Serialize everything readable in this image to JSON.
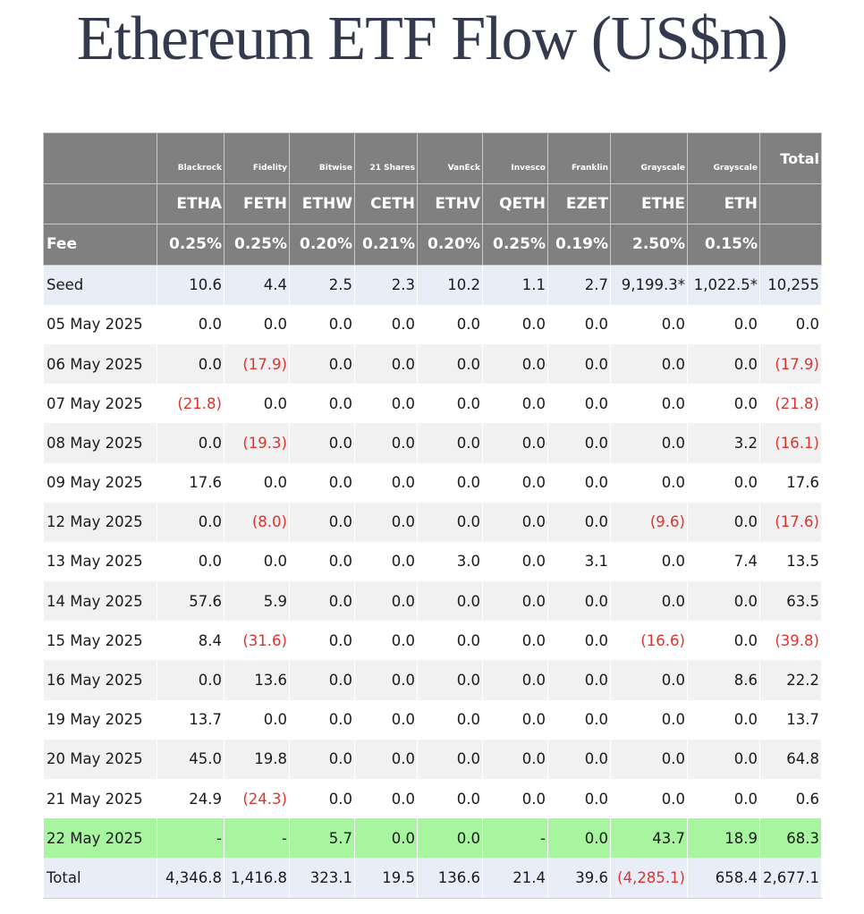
{
  "title": "Ethereum ETF Flow (US$m)",
  "header": {
    "issuers": [
      "Blackrock",
      "Fidelity",
      "Bitwise",
      "21 Shares",
      "VanEck",
      "Invesco",
      "Franklin",
      "Grayscale",
      "Grayscale"
    ],
    "total_label": "Total",
    "tickers": [
      "ETHA",
      "FETH",
      "ETHW",
      "CETH",
      "ETHV",
      "QETH",
      "EZET",
      "ETHE",
      "ETH"
    ],
    "fee_label": "Fee",
    "fees": [
      "0.25%",
      "0.25%",
      "0.20%",
      "0.21%",
      "0.20%",
      "0.25%",
      "0.19%",
      "2.50%",
      "0.15%"
    ]
  },
  "rows": [
    {
      "label": "Seed",
      "values": [
        "10.6",
        "4.4",
        "2.5",
        "2.3",
        "10.2",
        "1.1",
        "2.7",
        "9,199.3*",
        "1,022.5*",
        "10,255"
      ]
    },
    {
      "label": "05 May 2025",
      "values": [
        "0.0",
        "0.0",
        "0.0",
        "0.0",
        "0.0",
        "0.0",
        "0.0",
        "0.0",
        "0.0",
        "0.0"
      ]
    },
    {
      "label": "06 May 2025",
      "values": [
        "0.0",
        "(17.9)",
        "0.0",
        "0.0",
        "0.0",
        "0.0",
        "0.0",
        "0.0",
        "0.0",
        "(17.9)"
      ]
    },
    {
      "label": "07 May 2025",
      "values": [
        "(21.8)",
        "0.0",
        "0.0",
        "0.0",
        "0.0",
        "0.0",
        "0.0",
        "0.0",
        "0.0",
        "(21.8)"
      ]
    },
    {
      "label": "08 May 2025",
      "values": [
        "0.0",
        "(19.3)",
        "0.0",
        "0.0",
        "0.0",
        "0.0",
        "0.0",
        "0.0",
        "3.2",
        "(16.1)"
      ]
    },
    {
      "label": "09 May 2025",
      "values": [
        "17.6",
        "0.0",
        "0.0",
        "0.0",
        "0.0",
        "0.0",
        "0.0",
        "0.0",
        "0.0",
        "17.6"
      ]
    },
    {
      "label": "12 May 2025",
      "values": [
        "0.0",
        "(8.0)",
        "0.0",
        "0.0",
        "0.0",
        "0.0",
        "0.0",
        "(9.6)",
        "0.0",
        "(17.6)"
      ]
    },
    {
      "label": "13 May 2025",
      "values": [
        "0.0",
        "0.0",
        "0.0",
        "0.0",
        "3.0",
        "0.0",
        "3.1",
        "0.0",
        "7.4",
        "13.5"
      ]
    },
    {
      "label": "14 May 2025",
      "values": [
        "57.6",
        "5.9",
        "0.0",
        "0.0",
        "0.0",
        "0.0",
        "0.0",
        "0.0",
        "0.0",
        "63.5"
      ]
    },
    {
      "label": "15 May 2025",
      "values": [
        "8.4",
        "(31.6)",
        "0.0",
        "0.0",
        "0.0",
        "0.0",
        "0.0",
        "(16.6)",
        "0.0",
        "(39.8)"
      ]
    },
    {
      "label": "16 May 2025",
      "values": [
        "0.0",
        "13.6",
        "0.0",
        "0.0",
        "0.0",
        "0.0",
        "0.0",
        "0.0",
        "8.6",
        "22.2"
      ]
    },
    {
      "label": "19 May 2025",
      "values": [
        "13.7",
        "0.0",
        "0.0",
        "0.0",
        "0.0",
        "0.0",
        "0.0",
        "0.0",
        "0.0",
        "13.7"
      ]
    },
    {
      "label": "20 May 2025",
      "values": [
        "45.0",
        "19.8",
        "0.0",
        "0.0",
        "0.0",
        "0.0",
        "0.0",
        "0.0",
        "0.0",
        "64.8"
      ]
    },
    {
      "label": "21 May 2025",
      "values": [
        "24.9",
        "(24.3)",
        "0.0",
        "0.0",
        "0.0",
        "0.0",
        "0.0",
        "0.0",
        "0.0",
        "0.6"
      ]
    },
    {
      "label": "22 May 2025",
      "values": [
        "-",
        "-",
        "5.7",
        "0.0",
        "0.0",
        "-",
        "0.0",
        "43.7",
        "18.9",
        "68.3"
      ]
    },
    {
      "label": "Total",
      "values": [
        "4,346.8",
        "1,416.8",
        "323.1",
        "19.5",
        "136.6",
        "21.4",
        "39.6",
        "(4,285.1)",
        "658.4",
        "2,677.1"
      ]
    }
  ],
  "colors": {
    "title": "#333a4d",
    "header_bg": "#808080",
    "negative": "#e0332c",
    "highlight_row": "#a8f5a0",
    "summary_row": "#e8edf7",
    "stripe_row": "#f1f1f1"
  }
}
